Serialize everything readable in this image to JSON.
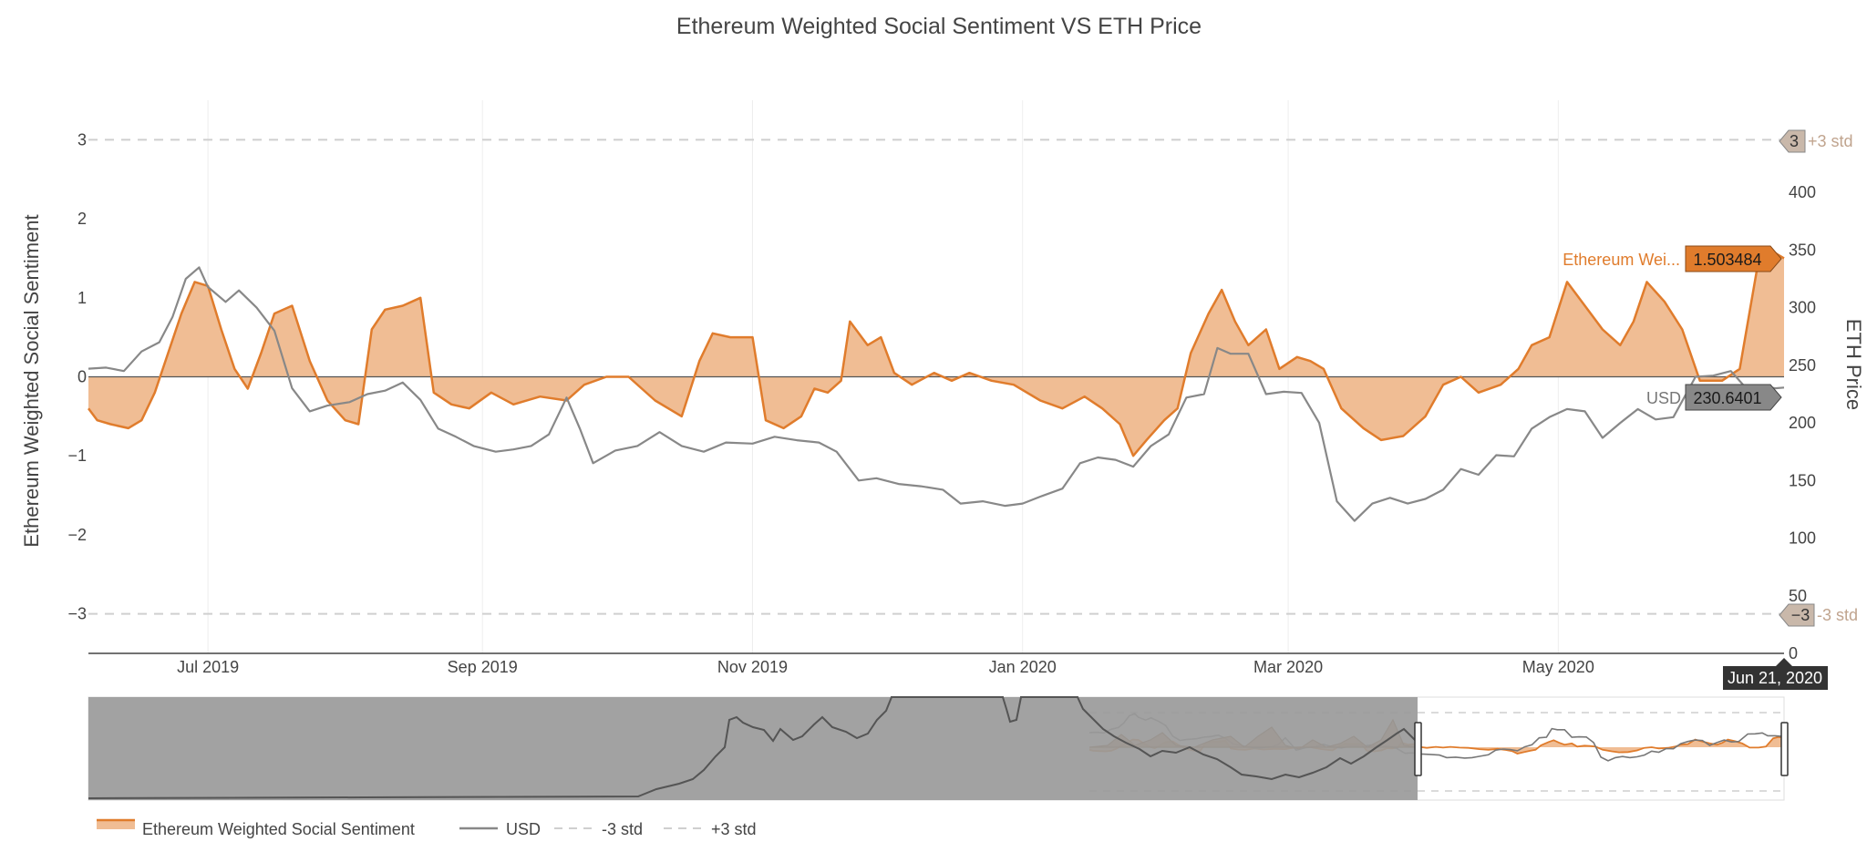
{
  "colors": {
    "sentiment_line": "#e07c2c",
    "sentiment_fill": "#f0bd94",
    "price_line": "#888888",
    "std_line": "#cfcfcf",
    "std_label": "#c0a48e",
    "std_badge": "#c9b8aa",
    "date_badge": "#333333",
    "range_shade": "#9a9a9a"
  },
  "chart_data": {
    "type": "area",
    "title": "Ethereum Weighted Social Sentiment VS ETH Price",
    "ylabel": "Ethereum Weighted Social Sentiment",
    "y2label": "ETH Price",
    "ylim": [
      -3.5,
      3.5
    ],
    "y2lim": [
      0,
      480
    ],
    "y_ticks": [
      3,
      2,
      1,
      0,
      -1,
      -2,
      -3
    ],
    "y_tick_labels": [
      "3",
      "2",
      "1",
      "0",
      "−1",
      "−2",
      "−3"
    ],
    "y2_ticks": [
      0,
      50,
      100,
      150,
      200,
      250,
      300,
      350,
      400
    ],
    "y2_tick_labels": [
      "0",
      "50",
      "100",
      "150",
      "200",
      "250",
      "300",
      "350",
      "400"
    ],
    "x_tick_labels": [
      "Jul 2019",
      "Sep 2019",
      "Nov 2019",
      "Jan 2020",
      "Mar 2020",
      "May 2020"
    ],
    "x_ticks": [
      "2019-07-01",
      "2019-09-01",
      "2019-11-01",
      "2020-01-01",
      "2020-03-01",
      "2020-05-01"
    ],
    "x_range": [
      "2019-06-04",
      "2020-06-21"
    ],
    "grid": true,
    "legend_position": "bottom",
    "std_lines": {
      "plus": 3,
      "minus": -3
    },
    "std_labels": {
      "plus": "+3 std",
      "minus": "-3 std",
      "plus_value": "3",
      "minus_value": "−3"
    },
    "hover": {
      "sentiment_name": "Ethereum Wei...",
      "sentiment_value": "1.503484",
      "price_name": "USD",
      "price_value": "230.6401",
      "date": "Jun 21, 2020"
    },
    "legend": [
      "Ethereum Weighted Social Sentiment",
      "USD",
      "-3 std",
      "+3 std"
    ],
    "series": [
      {
        "name": "Ethereum Weighted Social Sentiment",
        "points": [
          [
            "2019-06-04",
            -0.4
          ],
          [
            "2019-06-06",
            -0.55
          ],
          [
            "2019-06-09",
            -0.6
          ],
          [
            "2019-06-13",
            -0.65
          ],
          [
            "2019-06-16",
            -0.55
          ],
          [
            "2019-06-19",
            -0.2
          ],
          [
            "2019-06-22",
            0.3
          ],
          [
            "2019-06-25",
            0.8
          ],
          [
            "2019-06-28",
            1.2
          ],
          [
            "2019-07-01",
            1.15
          ],
          [
            "2019-07-04",
            0.6
          ],
          [
            "2019-07-07",
            0.1
          ],
          [
            "2019-07-10",
            -0.15
          ],
          [
            "2019-07-13",
            0.3
          ],
          [
            "2019-07-16",
            0.8
          ],
          [
            "2019-07-20",
            0.9
          ],
          [
            "2019-07-24",
            0.2
          ],
          [
            "2019-07-28",
            -0.3
          ],
          [
            "2019-08-01",
            -0.55
          ],
          [
            "2019-08-04",
            -0.6
          ],
          [
            "2019-08-07",
            0.6
          ],
          [
            "2019-08-10",
            0.85
          ],
          [
            "2019-08-14",
            0.9
          ],
          [
            "2019-08-18",
            1.0
          ],
          [
            "2019-08-21",
            -0.2
          ],
          [
            "2019-08-25",
            -0.35
          ],
          [
            "2019-08-29",
            -0.4
          ],
          [
            "2019-09-03",
            -0.2
          ],
          [
            "2019-09-08",
            -0.35
          ],
          [
            "2019-09-14",
            -0.25
          ],
          [
            "2019-09-20",
            -0.3
          ],
          [
            "2019-09-24",
            -0.1
          ],
          [
            "2019-09-29",
            0.0
          ],
          [
            "2019-10-04",
            0.0
          ],
          [
            "2019-10-10",
            -0.3
          ],
          [
            "2019-10-16",
            -0.5
          ],
          [
            "2019-10-20",
            0.2
          ],
          [
            "2019-10-23",
            0.55
          ],
          [
            "2019-10-27",
            0.5
          ],
          [
            "2019-11-01",
            0.5
          ],
          [
            "2019-11-04",
            -0.55
          ],
          [
            "2019-11-08",
            -0.65
          ],
          [
            "2019-11-12",
            -0.5
          ],
          [
            "2019-11-15",
            -0.15
          ],
          [
            "2019-11-18",
            -0.2
          ],
          [
            "2019-11-21",
            -0.05
          ],
          [
            "2019-11-23",
            0.7
          ],
          [
            "2019-11-27",
            0.4
          ],
          [
            "2019-11-30",
            0.5
          ],
          [
            "2019-12-03",
            0.05
          ],
          [
            "2019-12-07",
            -0.1
          ],
          [
            "2019-12-12",
            0.05
          ],
          [
            "2019-12-16",
            -0.05
          ],
          [
            "2019-12-20",
            0.05
          ],
          [
            "2019-12-25",
            -0.05
          ],
          [
            "2019-12-30",
            -0.1
          ],
          [
            "2020-01-05",
            -0.3
          ],
          [
            "2020-01-10",
            -0.4
          ],
          [
            "2020-01-15",
            -0.25
          ],
          [
            "2020-01-19",
            -0.4
          ],
          [
            "2020-01-23",
            -0.6
          ],
          [
            "2020-01-26",
            -1.0
          ],
          [
            "2020-01-29",
            -0.8
          ],
          [
            "2020-02-02",
            -0.55
          ],
          [
            "2020-02-05",
            -0.4
          ],
          [
            "2020-02-08",
            0.3
          ],
          [
            "2020-02-12",
            0.8
          ],
          [
            "2020-02-15",
            1.1
          ],
          [
            "2020-02-18",
            0.7
          ],
          [
            "2020-02-21",
            0.4
          ],
          [
            "2020-02-25",
            0.6
          ],
          [
            "2020-02-28",
            0.1
          ],
          [
            "2020-03-03",
            0.25
          ],
          [
            "2020-03-06",
            0.2
          ],
          [
            "2020-03-09",
            0.1
          ],
          [
            "2020-03-13",
            -0.4
          ],
          [
            "2020-03-18",
            -0.65
          ],
          [
            "2020-03-22",
            -0.8
          ],
          [
            "2020-03-27",
            -0.75
          ],
          [
            "2020-04-01",
            -0.5
          ],
          [
            "2020-04-05",
            -0.1
          ],
          [
            "2020-04-09",
            0.0
          ],
          [
            "2020-04-13",
            -0.2
          ],
          [
            "2020-04-18",
            -0.1
          ],
          [
            "2020-04-22",
            0.1
          ],
          [
            "2020-04-25",
            0.4
          ],
          [
            "2020-04-29",
            0.5
          ],
          [
            "2020-05-03",
            1.2
          ],
          [
            "2020-05-07",
            0.9
          ],
          [
            "2020-05-11",
            0.6
          ],
          [
            "2020-05-15",
            0.4
          ],
          [
            "2020-05-18",
            0.7
          ],
          [
            "2020-05-21",
            1.2
          ],
          [
            "2020-05-25",
            0.95
          ],
          [
            "2020-05-29",
            0.6
          ],
          [
            "2020-06-02",
            -0.05
          ],
          [
            "2020-06-07",
            -0.05
          ],
          [
            "2020-06-11",
            0.1
          ],
          [
            "2020-06-15",
            1.4
          ],
          [
            "2020-06-18",
            1.6
          ],
          [
            "2020-06-21",
            1.5
          ]
        ]
      },
      {
        "name": "USD",
        "points": [
          [
            "2019-06-04",
            247
          ],
          [
            "2019-06-08",
            248
          ],
          [
            "2019-06-12",
            245
          ],
          [
            "2019-06-16",
            262
          ],
          [
            "2019-06-20",
            270
          ],
          [
            "2019-06-23",
            292
          ],
          [
            "2019-06-26",
            325
          ],
          [
            "2019-06-29",
            335
          ],
          [
            "2019-07-01",
            318
          ],
          [
            "2019-07-05",
            305
          ],
          [
            "2019-07-08",
            315
          ],
          [
            "2019-07-12",
            300
          ],
          [
            "2019-07-16",
            280
          ],
          [
            "2019-07-20",
            230
          ],
          [
            "2019-07-24",
            210
          ],
          [
            "2019-07-28",
            215
          ],
          [
            "2019-08-02",
            218
          ],
          [
            "2019-08-06",
            225
          ],
          [
            "2019-08-10",
            228
          ],
          [
            "2019-08-14",
            235
          ],
          [
            "2019-08-18",
            220
          ],
          [
            "2019-08-22",
            195
          ],
          [
            "2019-08-26",
            188
          ],
          [
            "2019-08-30",
            180
          ],
          [
            "2019-09-04",
            175
          ],
          [
            "2019-09-08",
            177
          ],
          [
            "2019-09-12",
            180
          ],
          [
            "2019-09-16",
            190
          ],
          [
            "2019-09-20",
            222
          ],
          [
            "2019-09-23",
            195
          ],
          [
            "2019-09-26",
            165
          ],
          [
            "2019-10-01",
            176
          ],
          [
            "2019-10-06",
            180
          ],
          [
            "2019-10-11",
            192
          ],
          [
            "2019-10-16",
            180
          ],
          [
            "2019-10-21",
            175
          ],
          [
            "2019-10-26",
            183
          ],
          [
            "2019-11-01",
            182
          ],
          [
            "2019-11-06",
            188
          ],
          [
            "2019-11-11",
            185
          ],
          [
            "2019-11-16",
            183
          ],
          [
            "2019-11-20",
            175
          ],
          [
            "2019-11-25",
            150
          ],
          [
            "2019-11-29",
            152
          ],
          [
            "2019-12-04",
            147
          ],
          [
            "2019-12-09",
            145
          ],
          [
            "2019-12-14",
            142
          ],
          [
            "2019-12-18",
            130
          ],
          [
            "2019-12-23",
            132
          ],
          [
            "2019-12-28",
            128
          ],
          [
            "2020-01-01",
            130
          ],
          [
            "2020-01-05",
            136
          ],
          [
            "2020-01-10",
            143
          ],
          [
            "2020-01-14",
            165
          ],
          [
            "2020-01-18",
            170
          ],
          [
            "2020-01-22",
            168
          ],
          [
            "2020-01-26",
            162
          ],
          [
            "2020-01-30",
            180
          ],
          [
            "2020-02-03",
            190
          ],
          [
            "2020-02-07",
            222
          ],
          [
            "2020-02-11",
            225
          ],
          [
            "2020-02-14",
            265
          ],
          [
            "2020-02-17",
            260
          ],
          [
            "2020-02-21",
            260
          ],
          [
            "2020-02-25",
            225
          ],
          [
            "2020-02-29",
            227
          ],
          [
            "2020-03-04",
            226
          ],
          [
            "2020-03-08",
            200
          ],
          [
            "2020-03-12",
            132
          ],
          [
            "2020-03-16",
            115
          ],
          [
            "2020-03-20",
            130
          ],
          [
            "2020-03-24",
            135
          ],
          [
            "2020-03-28",
            130
          ],
          [
            "2020-04-01",
            134
          ],
          [
            "2020-04-05",
            142
          ],
          [
            "2020-04-09",
            160
          ],
          [
            "2020-04-13",
            155
          ],
          [
            "2020-04-17",
            172
          ],
          [
            "2020-04-21",
            171
          ],
          [
            "2020-04-25",
            195
          ],
          [
            "2020-04-29",
            205
          ],
          [
            "2020-05-03",
            212
          ],
          [
            "2020-05-07",
            210
          ],
          [
            "2020-05-11",
            187
          ],
          [
            "2020-05-15",
            200
          ],
          [
            "2020-05-19",
            212
          ],
          [
            "2020-05-23",
            203
          ],
          [
            "2020-05-27",
            205
          ],
          [
            "2020-06-01",
            240
          ],
          [
            "2020-06-05",
            241
          ],
          [
            "2020-06-09",
            245
          ],
          [
            "2020-06-12",
            232
          ],
          [
            "2020-06-16",
            232
          ],
          [
            "2020-06-19",
            230
          ],
          [
            "2020-06-21",
            230.6401
          ]
        ]
      }
    ]
  }
}
